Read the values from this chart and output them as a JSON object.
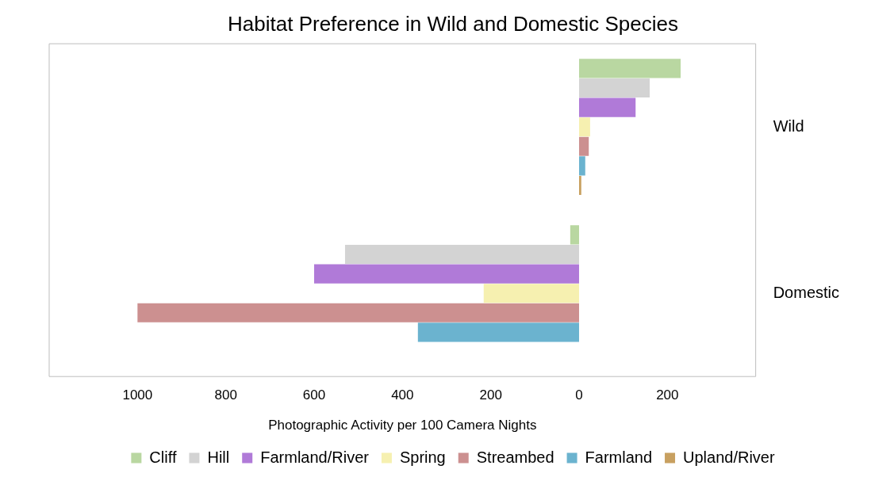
{
  "chart_data": {
    "type": "bar",
    "orientation": "horizontal",
    "title": "Habitat Preference in Wild and Domestic Species",
    "xlabel": "Photographic Activity per 100 Camera Nights",
    "categories": [
      "Wild",
      "Domestic"
    ],
    "series": [
      {
        "name": "Cliff",
        "color": "#b9d7a1",
        "values": [
          230,
          -20
        ]
      },
      {
        "name": "Hill",
        "color": "#d3d3d3",
        "values": [
          160,
          -530
        ]
      },
      {
        "name": "Farmland/River",
        "color": "#b07ad8",
        "values": [
          128,
          -600
        ]
      },
      {
        "name": "Spring",
        "color": "#f6f0b0",
        "values": [
          25,
          -216
        ]
      },
      {
        "name": "Streambed",
        "color": "#cc9090",
        "values": [
          22,
          -1000
        ]
      },
      {
        "name": "Farmland",
        "color": "#6bb3cf",
        "values": [
          14,
          -365
        ]
      },
      {
        "name": "Upland/River",
        "color": "#c8a060",
        "values": [
          5,
          0
        ]
      }
    ],
    "xlim": [
      -1200,
      400
    ],
    "xticks": [
      {
        "value": -1000,
        "label": "1000"
      },
      {
        "value": -800,
        "label": "800"
      },
      {
        "value": -600,
        "label": "600"
      },
      {
        "value": -400,
        "label": "400"
      },
      {
        "value": -200,
        "label": "200"
      },
      0,
      200
    ],
    "grid": false,
    "legend": "bottom"
  }
}
